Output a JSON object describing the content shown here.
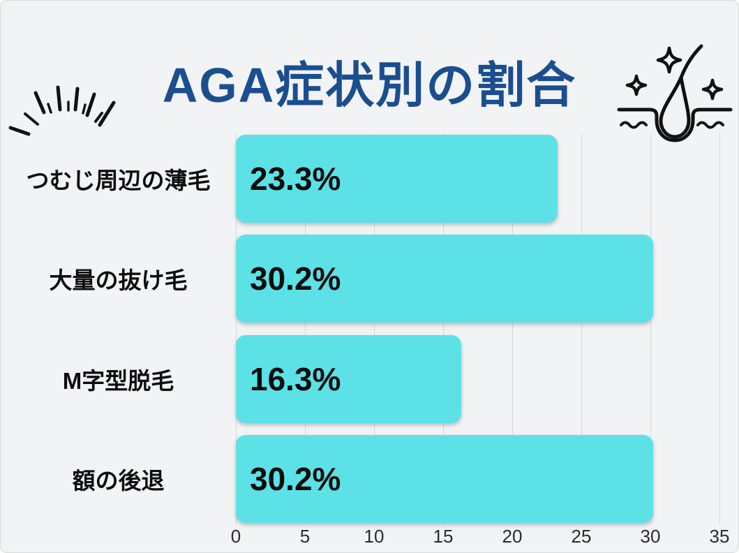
{
  "page": {
    "background": "#f2f3f4",
    "border_color": "#d8dadd"
  },
  "title": {
    "text": "AGA症状別の割合",
    "color": "#1b4e8f"
  },
  "decorations": {
    "burst_icon": "hand-drawn radiating burst lines, black",
    "follicle_icon": "hair follicle in skin with sparkles, black outline"
  },
  "chart_data": {
    "type": "bar",
    "orientation": "horizontal",
    "title": "AGA症状別の割合",
    "categories": [
      "つむじ周辺の薄毛",
      "大量の抜け毛",
      "M字型脱毛",
      "額の後退"
    ],
    "values": [
      23.3,
      30.2,
      16.3,
      30.2
    ],
    "value_labels": [
      "23.3%",
      "30.2%",
      "16.3%",
      "30.2%"
    ],
    "x_ticks": [
      0,
      5,
      10,
      15,
      20,
      25,
      30,
      35
    ],
    "xlim": [
      0,
      35
    ],
    "xlabel": "",
    "ylabel": "",
    "grid": true,
    "legend": false,
    "bar_color": "#5ce1e6",
    "gridline_color": "#d4d6d8",
    "value_label_color": "#0d0d0d",
    "category_label_color": "#0d0d0d",
    "tick_label_color": "#2b2b2b"
  }
}
